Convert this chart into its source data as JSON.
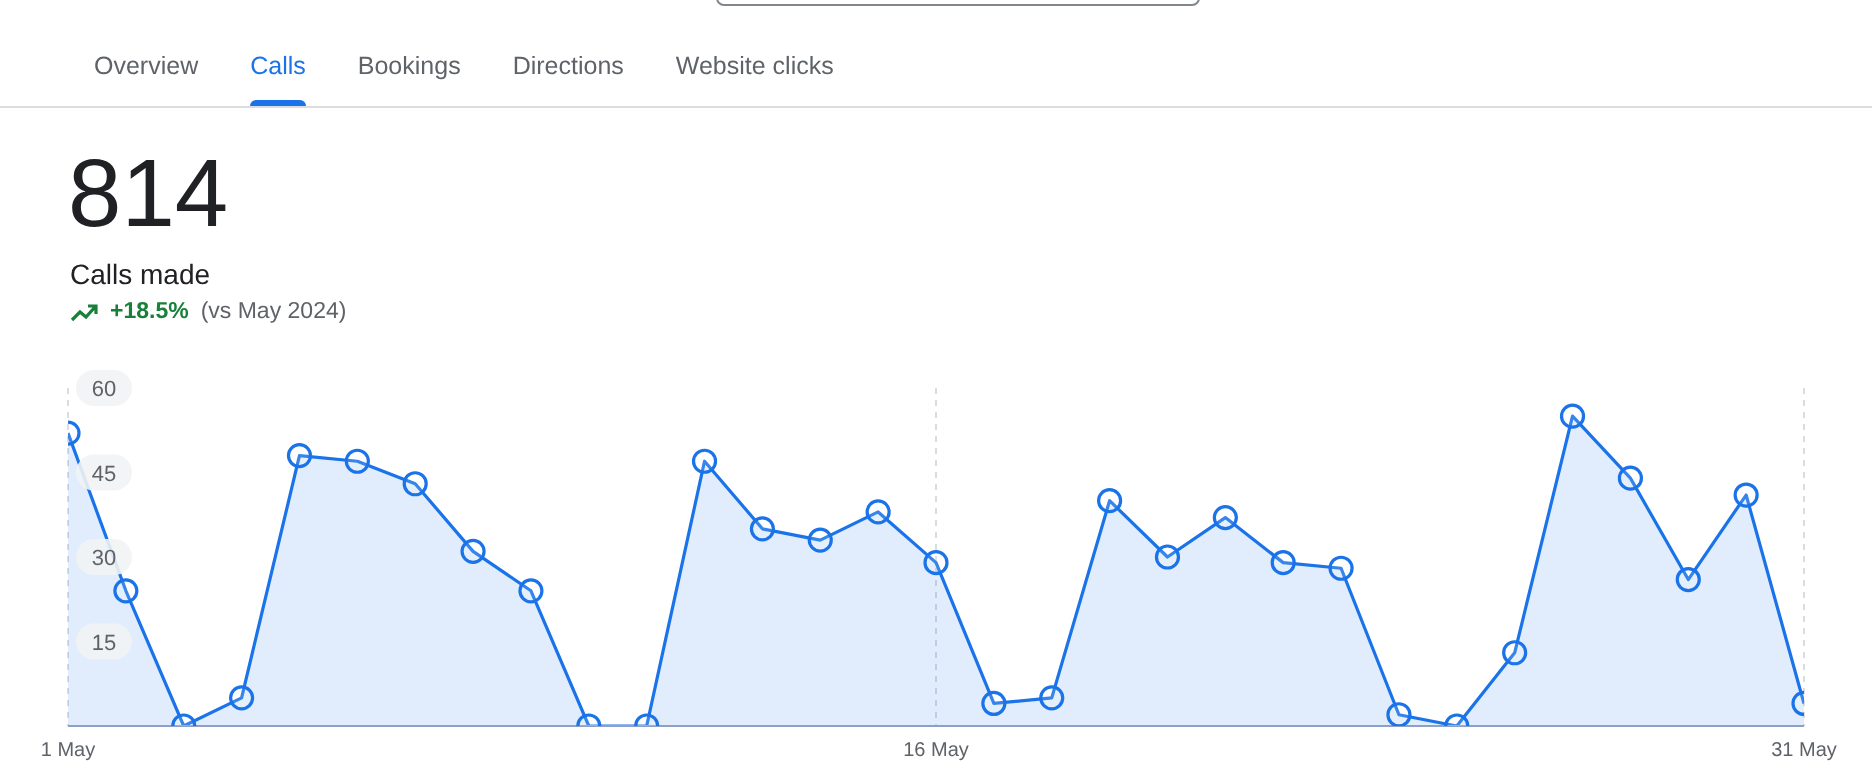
{
  "chart_data": {
    "type": "area",
    "title": "814",
    "subtitle": "Calls made",
    "annotations": [
      "Overview",
      "Calls",
      "Bookings",
      "Directions",
      "Website clicks",
      "+18.5%",
      "(vs May 2024)"
    ],
    "categories": [
      "1 May",
      null,
      null,
      null,
      null,
      null,
      null,
      null,
      null,
      null,
      null,
      null,
      null,
      null,
      null,
      "16 May",
      null,
      null,
      null,
      null,
      null,
      null,
      null,
      null,
      null,
      null,
      null,
      null,
      null,
      null,
      "31 May"
    ],
    "series": [
      {
        "color": "#1a73e8",
        "values": [
          52,
          24,
          0,
          5,
          48,
          47,
          43,
          31,
          24,
          0,
          0,
          47,
          35,
          33,
          38,
          29,
          4,
          5,
          40,
          30,
          37,
          29,
          28,
          2,
          0,
          13,
          55,
          44,
          26,
          41,
          4
        ]
      }
    ],
    "ylim": [
      0,
      60
    ],
    "yticks": [
      15,
      30,
      45,
      60
    ],
    "grid": "x",
    "legend": false,
    "marker": "circle",
    "line_style": "solid"
  }
}
